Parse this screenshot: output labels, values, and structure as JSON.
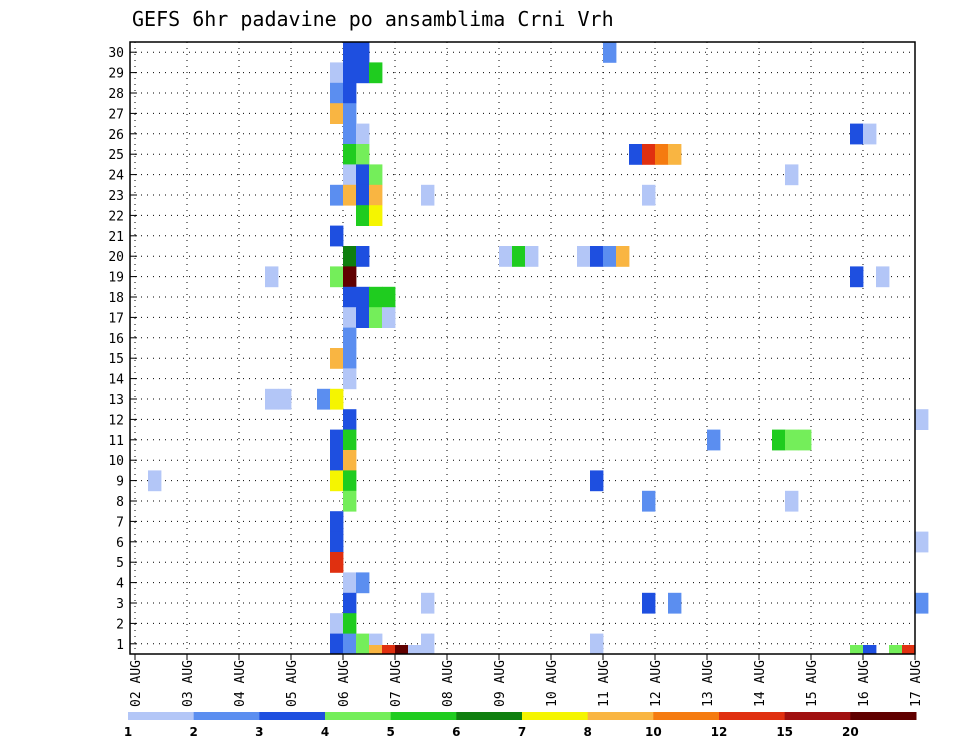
{
  "chart_data": {
    "type": "heatmap",
    "title": "GEFS 6hr padavine po ansamblima Crni Vrh",
    "x_ticks": [
      "02 AUG",
      "03 AUG",
      "04 AUG",
      "05 AUG",
      "06 AUG",
      "07 AUG",
      "08 AUG",
      "09 AUG",
      "10 AUG",
      "11 AUG",
      "12 AUG",
      "13 AUG",
      "14 AUG",
      "15 AUG",
      "16 AUG",
      "17 AUG"
    ],
    "y_ticks": [
      1,
      2,
      3,
      4,
      5,
      6,
      7,
      8,
      9,
      10,
      11,
      12,
      13,
      14,
      15,
      16,
      17,
      18,
      19,
      20,
      21,
      22,
      23,
      24,
      25,
      26,
      27,
      28,
      29,
      30
    ],
    "x_range_days": [
      0,
      15
    ],
    "y_range": [
      0,
      30
    ],
    "grid": true,
    "colorbar": {
      "levels": [
        "1",
        "2",
        "3",
        "4",
        "5",
        "6",
        "7",
        "8",
        "10",
        "12",
        "15",
        "20"
      ],
      "colors": [
        "#b3c6f7",
        "#5b8ef0",
        "#1e4fe0",
        "#74ee5a",
        "#1fcc1f",
        "#0f7f0f",
        "#f5f500",
        "#f9b542",
        "#f57b10",
        "#e03010",
        "#a01010",
        "#600000"
      ]
    },
    "cells": [
      {
        "x": 4.0,
        "y": 30,
        "c": 2
      },
      {
        "x": 4.25,
        "y": 30,
        "c": 2
      },
      {
        "x": 9.0,
        "y": 30,
        "c": 1
      },
      {
        "x": 3.75,
        "y": 29,
        "c": 0
      },
      {
        "x": 4.0,
        "y": 29,
        "c": 2
      },
      {
        "x": 4.25,
        "y": 29,
        "c": 2
      },
      {
        "x": 4.5,
        "y": 29,
        "c": 4
      },
      {
        "x": 3.75,
        "y": 28,
        "c": 1
      },
      {
        "x": 4.0,
        "y": 28,
        "c": 2
      },
      {
        "x": 3.75,
        "y": 27,
        "c": 7
      },
      {
        "x": 4.0,
        "y": 27,
        "c": 1
      },
      {
        "x": 4.0,
        "y": 26,
        "c": 1
      },
      {
        "x": 4.25,
        "y": 26,
        "c": 0
      },
      {
        "x": 13.75,
        "y": 26,
        "c": 2
      },
      {
        "x": 14.0,
        "y": 26,
        "c": 0
      },
      {
        "x": 4.0,
        "y": 25,
        "c": 4
      },
      {
        "x": 4.25,
        "y": 25,
        "c": 3
      },
      {
        "x": 9.5,
        "y": 25,
        "c": 2
      },
      {
        "x": 9.75,
        "y": 25,
        "c": 9
      },
      {
        "x": 10.0,
        "y": 25,
        "c": 8
      },
      {
        "x": 10.25,
        "y": 25,
        "c": 7
      },
      {
        "x": 4.0,
        "y": 24,
        "c": 0
      },
      {
        "x": 4.25,
        "y": 24,
        "c": 2
      },
      {
        "x": 4.5,
        "y": 24,
        "c": 3
      },
      {
        "x": 12.5,
        "y": 24,
        "c": 0
      },
      {
        "x": 3.75,
        "y": 23,
        "c": 1
      },
      {
        "x": 4.0,
        "y": 23,
        "c": 7
      },
      {
        "x": 4.25,
        "y": 23,
        "c": 2
      },
      {
        "x": 4.5,
        "y": 23,
        "c": 7
      },
      {
        "x": 5.5,
        "y": 23,
        "c": 0
      },
      {
        "x": 9.75,
        "y": 23,
        "c": 0
      },
      {
        "x": 4.25,
        "y": 22,
        "c": 4
      },
      {
        "x": 4.5,
        "y": 22,
        "c": 6
      },
      {
        "x": 3.75,
        "y": 21,
        "c": 2
      },
      {
        "x": 4.0,
        "y": 20,
        "c": 5
      },
      {
        "x": 4.25,
        "y": 20,
        "c": 2
      },
      {
        "x": 7.0,
        "y": 20,
        "c": 0
      },
      {
        "x": 7.25,
        "y": 20,
        "c": 4
      },
      {
        "x": 7.5,
        "y": 20,
        "c": 0
      },
      {
        "x": 8.5,
        "y": 20,
        "c": 0
      },
      {
        "x": 8.75,
        "y": 20,
        "c": 2
      },
      {
        "x": 9.0,
        "y": 20,
        "c": 1
      },
      {
        "x": 9.25,
        "y": 20,
        "c": 7
      },
      {
        "x": 2.5,
        "y": 19,
        "c": 0
      },
      {
        "x": 3.75,
        "y": 19,
        "c": 3
      },
      {
        "x": 4.0,
        "y": 19,
        "c": 11
      },
      {
        "x": 13.75,
        "y": 19,
        "c": 2
      },
      {
        "x": 14.25,
        "y": 19,
        "c": 0
      },
      {
        "x": 4.0,
        "y": 18,
        "c": 2
      },
      {
        "x": 4.25,
        "y": 18,
        "c": 2
      },
      {
        "x": 4.5,
        "y": 18,
        "c": 4
      },
      {
        "x": 4.75,
        "y": 18,
        "c": 4
      },
      {
        "x": 4.0,
        "y": 17,
        "c": 0
      },
      {
        "x": 4.25,
        "y": 17,
        "c": 2
      },
      {
        "x": 4.5,
        "y": 17,
        "c": 3
      },
      {
        "x": 4.75,
        "y": 17,
        "c": 0
      },
      {
        "x": 4.0,
        "y": 16,
        "c": 1
      },
      {
        "x": 3.75,
        "y": 15,
        "c": 7
      },
      {
        "x": 4.0,
        "y": 15,
        "c": 1
      },
      {
        "x": 4.0,
        "y": 14,
        "c": 0
      },
      {
        "x": 2.5,
        "y": 13,
        "c": 0
      },
      {
        "x": 2.75,
        "y": 13,
        "c": 0
      },
      {
        "x": 3.5,
        "y": 13,
        "c": 1
      },
      {
        "x": 3.75,
        "y": 13,
        "c": 6
      },
      {
        "x": 4.0,
        "y": 12,
        "c": 2
      },
      {
        "x": 15.0,
        "y": 12,
        "c": 0
      },
      {
        "x": 3.75,
        "y": 11,
        "c": 2
      },
      {
        "x": 4.0,
        "y": 11,
        "c": 4
      },
      {
        "x": 11.0,
        "y": 11,
        "c": 1
      },
      {
        "x": 12.25,
        "y": 11,
        "c": 4
      },
      {
        "x": 12.5,
        "y": 11,
        "c": 3
      },
      {
        "x": 12.75,
        "y": 11,
        "c": 3
      },
      {
        "x": 3.75,
        "y": 10,
        "c": 2
      },
      {
        "x": 4.0,
        "y": 10,
        "c": 7
      },
      {
        "x": 0.25,
        "y": 9,
        "c": 0
      },
      {
        "x": 3.75,
        "y": 9,
        "c": 6
      },
      {
        "x": 4.0,
        "y": 9,
        "c": 4
      },
      {
        "x": 8.75,
        "y": 9,
        "c": 2
      },
      {
        "x": 4.0,
        "y": 8,
        "c": 3
      },
      {
        "x": 9.75,
        "y": 8,
        "c": 1
      },
      {
        "x": 12.5,
        "y": 8,
        "c": 0
      },
      {
        "x": 3.75,
        "y": 7,
        "c": 2
      },
      {
        "x": 3.75,
        "y": 6,
        "c": 2
      },
      {
        "x": 15.0,
        "y": 6,
        "c": 0
      },
      {
        "x": 3.75,
        "y": 5,
        "c": 9
      },
      {
        "x": 4.0,
        "y": 4,
        "c": 0
      },
      {
        "x": 4.25,
        "y": 4,
        "c": 1
      },
      {
        "x": 4.0,
        "y": 3,
        "c": 2
      },
      {
        "x": 5.5,
        "y": 3,
        "c": 0
      },
      {
        "x": 9.75,
        "y": 3,
        "c": 2
      },
      {
        "x": 10.25,
        "y": 3,
        "c": 1
      },
      {
        "x": 15.0,
        "y": 3,
        "c": 1
      },
      {
        "x": 3.75,
        "y": 2,
        "c": 0
      },
      {
        "x": 4.0,
        "y": 2,
        "c": 4
      },
      {
        "x": 3.75,
        "y": 1,
        "c": 2
      },
      {
        "x": 4.0,
        "y": 1,
        "c": 1
      },
      {
        "x": 4.25,
        "y": 1,
        "c": 3
      },
      {
        "x": 4.5,
        "y": 1,
        "c": 0
      },
      {
        "x": 5.5,
        "y": 1,
        "c": 0
      },
      {
        "x": 8.75,
        "y": 1,
        "c": 0
      }
    ],
    "bottom_strip": [
      {
        "x": 4.5,
        "c": 7
      },
      {
        "x": 4.75,
        "c": 9
      },
      {
        "x": 5.0,
        "c": 11
      },
      {
        "x": 5.25,
        "c": 0
      },
      {
        "x": 13.75,
        "c": 3
      },
      {
        "x": 14.0,
        "c": 2
      },
      {
        "x": 14.5,
        "c": 3
      },
      {
        "x": 14.75,
        "c": 9
      }
    ]
  }
}
